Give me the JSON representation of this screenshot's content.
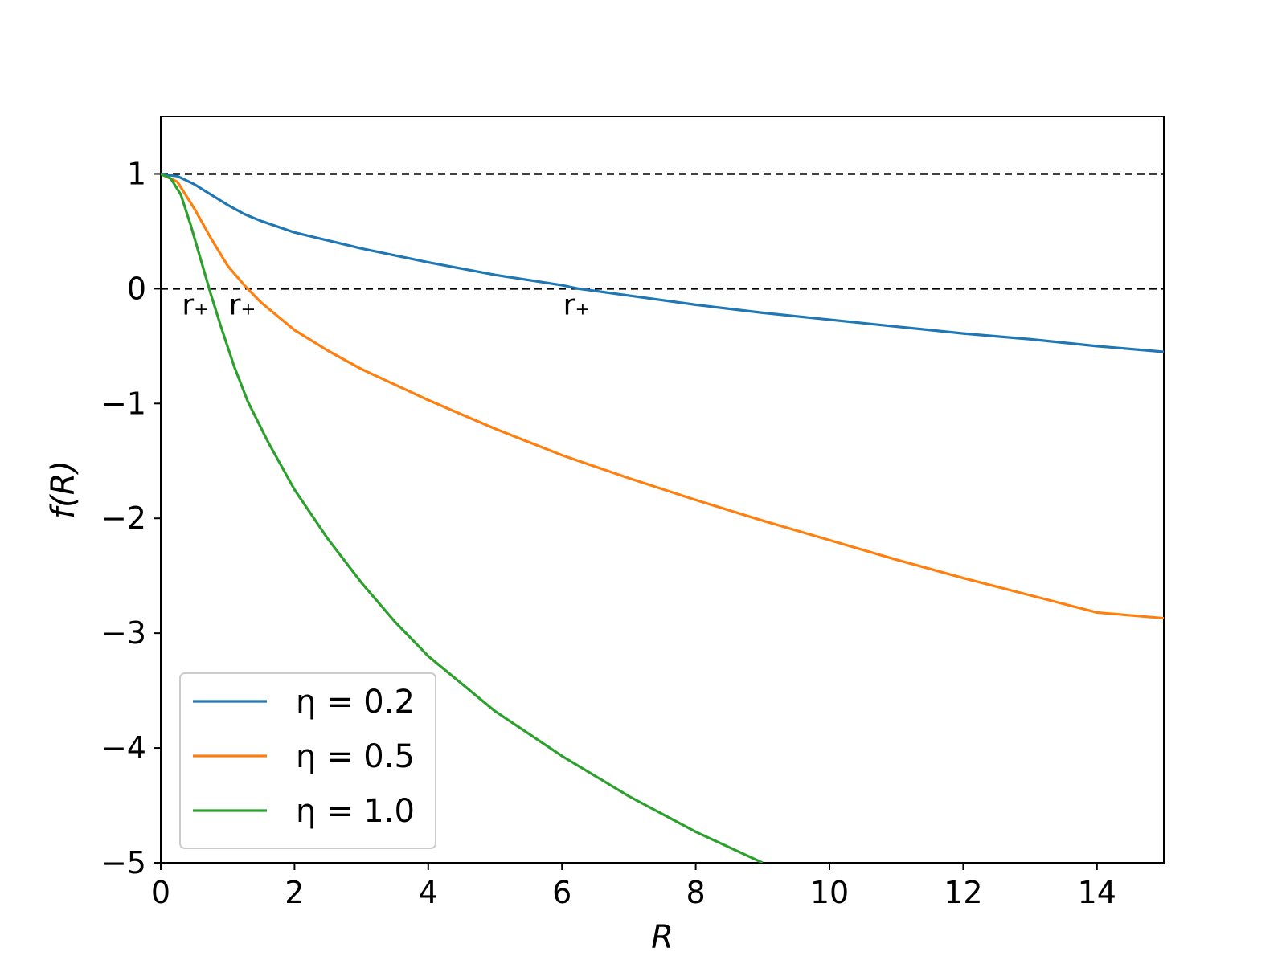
{
  "chart_data": {
    "type": "line",
    "title": "",
    "xlabel": "R",
    "ylabel": "f(R)",
    "xlim": [
      0,
      15
    ],
    "ylim": [
      -5,
      1.5
    ],
    "xticks": [
      0,
      2,
      4,
      6,
      8,
      10,
      12,
      14
    ],
    "yticks": [
      -5,
      -4,
      -3,
      -2,
      -1,
      0,
      1
    ],
    "xtick_labels": [
      "0",
      "2",
      "4",
      "6",
      "8",
      "10",
      "12",
      "14"
    ],
    "ytick_labels": [
      "−5",
      "−4",
      "−3",
      "−2",
      "−1",
      "0",
      "1"
    ],
    "grid": false,
    "legend_position": "lower-left",
    "reference_lines": [
      {
        "y": 1,
        "style": "dashed",
        "color": "#000000"
      },
      {
        "y": 0,
        "style": "dashed",
        "color": "#000000"
      }
    ],
    "annotations": [
      {
        "text": "r₊",
        "x": 0.52,
        "y": 0
      },
      {
        "text": "r₊",
        "x": 1.22,
        "y": 0
      },
      {
        "text": "r₊",
        "x": 6.22,
        "y": 0
      }
    ],
    "series": [
      {
        "name": "η = 0.2",
        "color": "#1f77b4",
        "x": [
          0,
          0.25,
          0.5,
          0.75,
          1.0,
          1.25,
          1.5,
          2.0,
          2.5,
          3,
          4,
          5,
          6,
          6.25,
          7,
          8,
          9,
          10,
          11,
          12,
          13,
          14,
          15
        ],
        "y": [
          1.0,
          0.98,
          0.91,
          0.82,
          0.73,
          0.65,
          0.59,
          0.49,
          0.42,
          0.35,
          0.23,
          0.12,
          0.03,
          0.0,
          -0.06,
          -0.14,
          -0.21,
          -0.27,
          -0.33,
          -0.39,
          -0.44,
          -0.5,
          -0.55
        ]
      },
      {
        "name": "η = 0.5",
        "color": "#ff7f0e",
        "x": [
          0,
          0.25,
          0.5,
          0.75,
          1.0,
          1.25,
          1.5,
          2.0,
          2.5,
          3,
          4,
          5,
          6,
          7,
          8,
          9,
          10,
          11,
          12,
          13,
          14,
          15
        ],
        "y": [
          1.0,
          0.93,
          0.7,
          0.44,
          0.2,
          0.03,
          -0.12,
          -0.36,
          -0.54,
          -0.7,
          -0.97,
          -1.22,
          -1.45,
          -1.65,
          -1.84,
          -2.02,
          -2.19,
          -2.36,
          -2.52,
          -2.67,
          -2.82,
          -2.87
        ]
      },
      {
        "name": "η = 1.0",
        "color": "#2ca02c",
        "x": [
          0,
          0.15,
          0.3,
          0.45,
          0.6,
          0.75,
          0.9,
          1.1,
          1.3,
          1.6,
          2.0,
          2.5,
          3,
          3.5,
          4,
          5,
          6,
          7,
          8,
          9
        ],
        "y": [
          1.0,
          0.96,
          0.82,
          0.55,
          0.25,
          -0.05,
          -0.33,
          -0.68,
          -0.98,
          -1.33,
          -1.75,
          -2.18,
          -2.56,
          -2.9,
          -3.2,
          -3.68,
          -4.07,
          -4.42,
          -4.73,
          -5.0
        ]
      }
    ]
  }
}
